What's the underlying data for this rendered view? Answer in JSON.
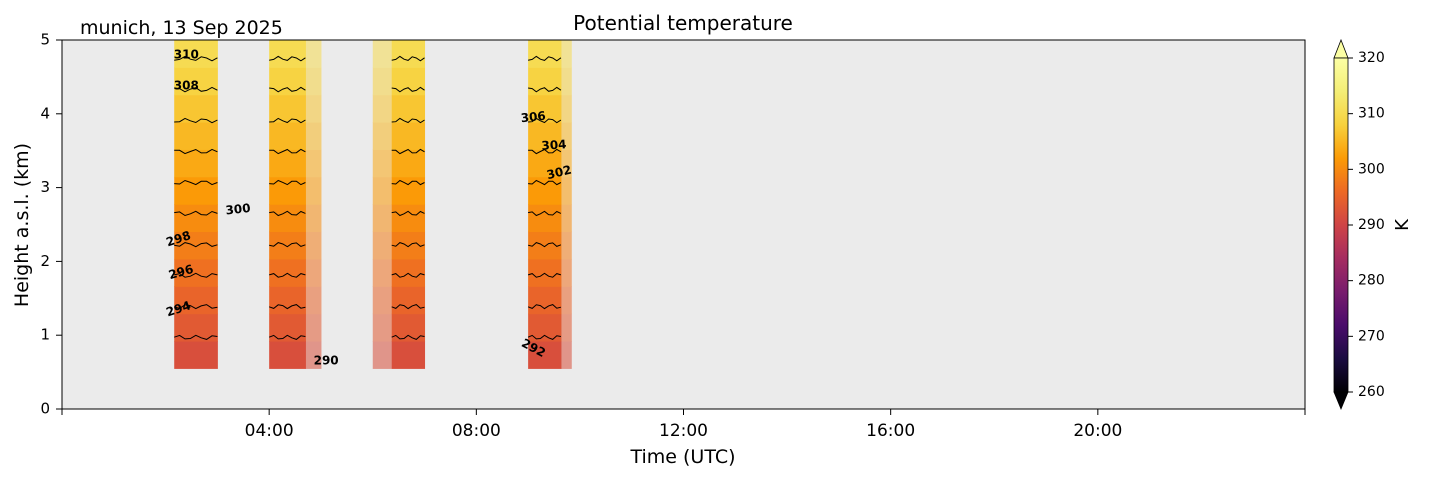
{
  "chart_data": {
    "type": "heatmap",
    "title": "Potential temperature",
    "subtitle": "munich, 13 Sep 2025",
    "xlabel": "Time (UTC)",
    "ylabel": "Height a.s.l. (km)",
    "xlim_hours": [
      0,
      24
    ],
    "ylim_km": [
      0,
      5
    ],
    "x_ticks": [
      {
        "hour": 4,
        "label": "04:00"
      },
      {
        "hour": 8,
        "label": "08:00"
      },
      {
        "hour": 12,
        "label": "12:00"
      },
      {
        "hour": 16,
        "label": "16:00"
      },
      {
        "hour": 20,
        "label": "20:00"
      }
    ],
    "y_ticks": [
      "0",
      "1",
      "2",
      "3",
      "4",
      "5"
    ],
    "colorbar": {
      "label": "K",
      "range": [
        260,
        320
      ],
      "ticks": [
        "260",
        "270",
        "280",
        "290",
        "300",
        "310",
        "320"
      ],
      "colormap": "inferno",
      "extend": "both"
    },
    "background_color": "#ebebeb",
    "profile_height_range_km": [
      0.55,
      5.0
    ],
    "profiles": [
      {
        "start": "02:10",
        "end": "03:00",
        "faded": false,
        "theta_bottom_K": 291,
        "theta_top_K": 311
      },
      {
        "start": "04:00",
        "end": "04:42",
        "faded": false,
        "theta_bottom_K": 291,
        "theta_top_K": 311
      },
      {
        "start": "04:42",
        "end": "05:00",
        "faded": true,
        "theta_bottom_K": 291,
        "theta_top_K": 311
      },
      {
        "start": "06:00",
        "end": "06:22",
        "faded": true,
        "theta_bottom_K": 291,
        "theta_top_K": 311
      },
      {
        "start": "06:22",
        "end": "07:00",
        "faded": false,
        "theta_bottom_K": 291,
        "theta_top_K": 311
      },
      {
        "start": "09:00",
        "end": "09:38",
        "faded": false,
        "theta_bottom_K": 291,
        "theta_top_K": 311
      },
      {
        "start": "09:38",
        "end": "09:50",
        "faded": true,
        "theta_bottom_K": 291,
        "theta_top_K": 311
      }
    ],
    "contour_interval_K": 2,
    "contour_labels": [
      "310",
      "308",
      "306",
      "304",
      "302",
      "300",
      "298",
      "296",
      "294",
      "292",
      "290"
    ]
  }
}
